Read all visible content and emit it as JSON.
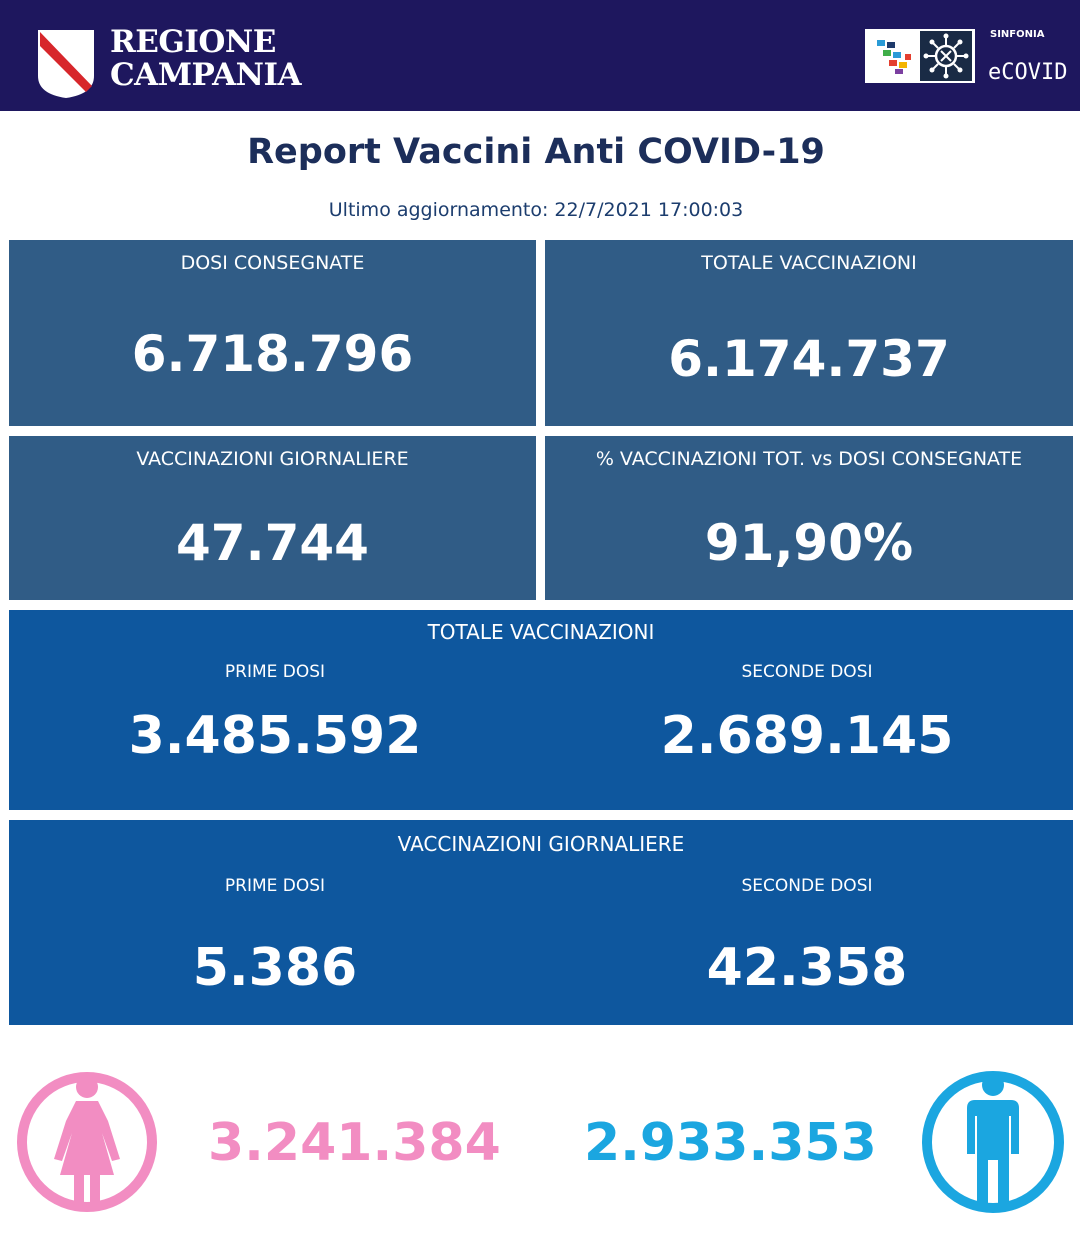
{
  "header": {
    "region_line1": "REGIONE",
    "region_line2": "CAMPANIA",
    "brand_small": "SINFONIA",
    "brand_name": "eCOVID",
    "background": "#1e175e"
  },
  "report": {
    "title": "Report Vaccini Anti COVID-19",
    "last_update": "Ultimo aggiornamento: 22/7/2021  17:00:03"
  },
  "tiles": {
    "dosi_consegnate": {
      "label": "DOSI  CONSEGNATE",
      "value": "6.718.796"
    },
    "totale_vaccinazioni": {
      "label": "TOTALE VACCINAZIONI",
      "value": "6.174.737"
    },
    "vaccinazioni_giornaliere": {
      "label": "VACCINAZIONI GIORNALIERE",
      "value": "47.744"
    },
    "percentuale": {
      "label": "% VACCINAZIONI TOT. vs DOSI CONSEGNATE",
      "value": "91,90%"
    }
  },
  "totale_breakdown": {
    "label": "TOTALE VACCINAZIONI",
    "prime_label": "PRIME DOSI",
    "prime_value": "3.485.592",
    "seconde_label": "SECONDE DOSI",
    "seconde_value": "2.689.145"
  },
  "giornaliere_breakdown": {
    "label": "VACCINAZIONI GIORNALIERE",
    "prime_label": "PRIME DOSI",
    "prime_value": "5.386",
    "seconde_label": "SECONDE DOSI",
    "seconde_value": "42.358"
  },
  "gender": {
    "female_value": "3.241.384",
    "male_value": "2.933.353",
    "female_color": "#f28dc2",
    "male_color": "#1ba6e0",
    "female_icon": "female-person-icon",
    "male_icon": "male-person-icon"
  },
  "colors": {
    "tile_dark": "#305c86",
    "tile_blue": "#0e579e",
    "title": "#1c2e5a"
  }
}
